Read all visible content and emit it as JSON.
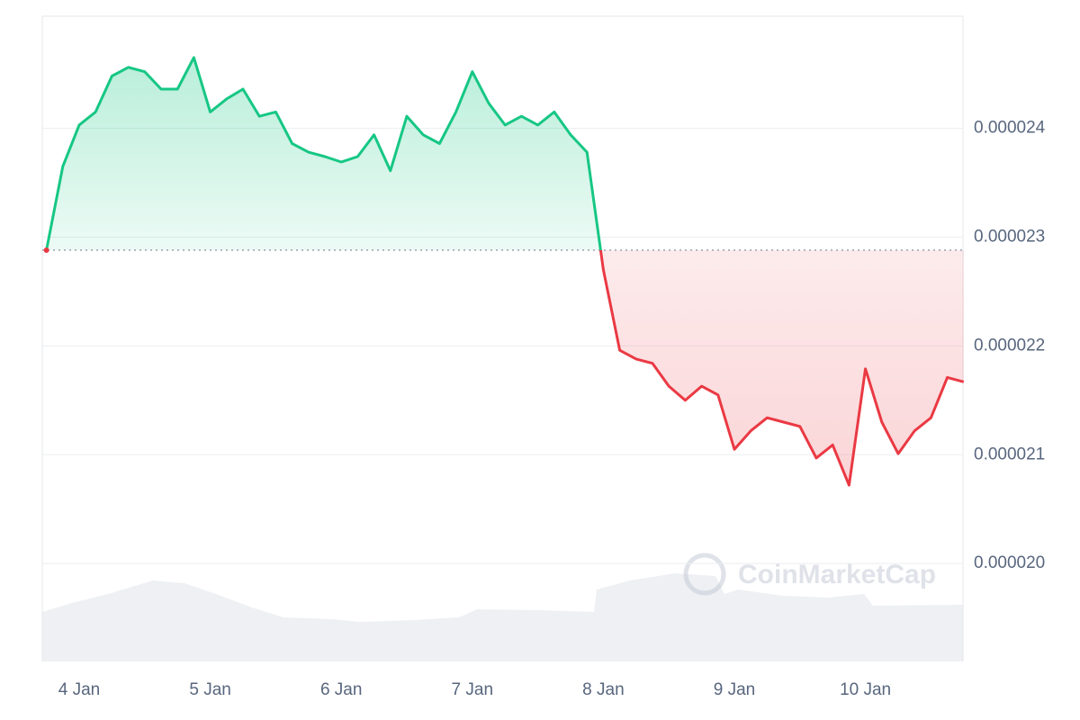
{
  "chart_data": {
    "type": "line",
    "watermark": "CoinMarketCap",
    "categories": [
      null,
      null,
      "4 Jan",
      null,
      null,
      null,
      null,
      null,
      null,
      null,
      "5 Jan",
      null,
      null,
      null,
      null,
      null,
      null,
      null,
      "6 Jan",
      null,
      null,
      null,
      null,
      null,
      null,
      null,
      "7 Jan",
      null,
      null,
      null,
      null,
      null,
      null,
      null,
      "8 Jan",
      null,
      null,
      null,
      null,
      null,
      null,
      null,
      "9 Jan",
      null,
      null,
      null,
      null,
      null,
      null,
      null,
      "10 Jan",
      null,
      null,
      null,
      null,
      null,
      null
    ],
    "values": [
      2.288e-05,
      2.365e-05,
      2.403e-05,
      2.415e-05,
      2.448e-05,
      2.456e-05,
      2.452e-05,
      2.436e-05,
      2.436e-05,
      2.465e-05,
      2.415e-05,
      2.427e-05,
      2.436e-05,
      2.411e-05,
      2.415e-05,
      2.386e-05,
      2.378e-05,
      2.374e-05,
      2.369e-05,
      2.374e-05,
      2.394e-05,
      2.361e-05,
      2.411e-05,
      2.394e-05,
      2.386e-05,
      2.415e-05,
      2.452e-05,
      2.423e-05,
      2.403e-05,
      2.411e-05,
      2.403e-05,
      2.415e-05,
      2.394e-05,
      2.378e-05,
      2.27e-05,
      2.196e-05,
      2.188e-05,
      2.184e-05,
      2.163e-05,
      2.15e-05,
      2.163e-05,
      2.155e-05,
      2.105e-05,
      2.122e-05,
      2.134e-05,
      2.13e-05,
      2.126e-05,
      2.097e-05,
      2.109e-05,
      2.072e-05,
      2.179e-05,
      2.13e-05,
      2.101e-05,
      2.122e-05,
      2.134e-05,
      2.171e-05,
      2.167e-05
    ],
    "baseline": 2.288e-05,
    "up_color": "#16c784",
    "down_color": "#ea3943",
    "ylim": [
      1.91e-05,
      2.503e-05
    ],
    "yticks": [
      {
        "value": 2e-05,
        "label": "0.000020"
      },
      {
        "value": 2.1e-05,
        "label": "0.000021"
      },
      {
        "value": 2.2e-05,
        "label": "0.000022"
      },
      {
        "value": 2.3e-05,
        "label": "0.000023"
      },
      {
        "value": 2.4e-05,
        "label": "0.000024"
      }
    ],
    "grid": true
  }
}
